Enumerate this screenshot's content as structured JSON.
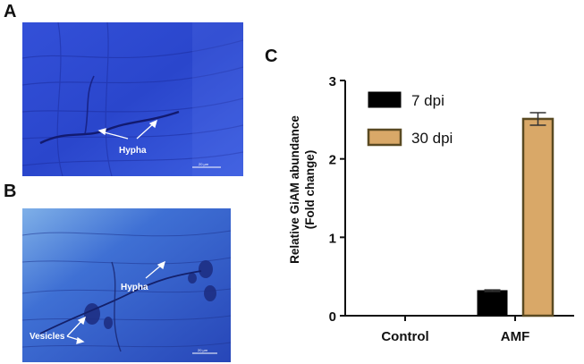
{
  "panels": {
    "a": {
      "letter": "A",
      "annotations": [
        "Hypha"
      ],
      "scale_bar": "20 µm"
    },
    "b": {
      "letter": "B",
      "annotations": [
        "Hypha",
        "Vesicles"
      ],
      "scale_bar": "20 µm"
    },
    "c": {
      "letter": "C"
    }
  },
  "colors": {
    "stain_blue": "#2a48d8",
    "bar_7dpi": "#000000",
    "bar_30dpi": "#d9a868",
    "bar_30dpi_edge": "#5a4a22"
  },
  "chart_data": {
    "type": "bar",
    "categories": [
      "Control",
      "AMF"
    ],
    "ylabel": "Relative GiAM abundance (Fold change)",
    "ylabel_lines": [
      "Relative GiAM abundance",
      "(Fold change)"
    ],
    "ylim": [
      0,
      3
    ],
    "yticks": [
      0,
      1,
      2,
      3
    ],
    "legend_position": "top-left",
    "series": [
      {
        "name": "7 dpi",
        "values": [
          0,
          0.32
        ],
        "errors": [
          0,
          0.01
        ],
        "color": "#000000"
      },
      {
        "name": "30 dpi",
        "values": [
          0,
          2.51
        ],
        "errors": [
          0,
          0.08
        ],
        "color": "#d9a868"
      }
    ]
  }
}
